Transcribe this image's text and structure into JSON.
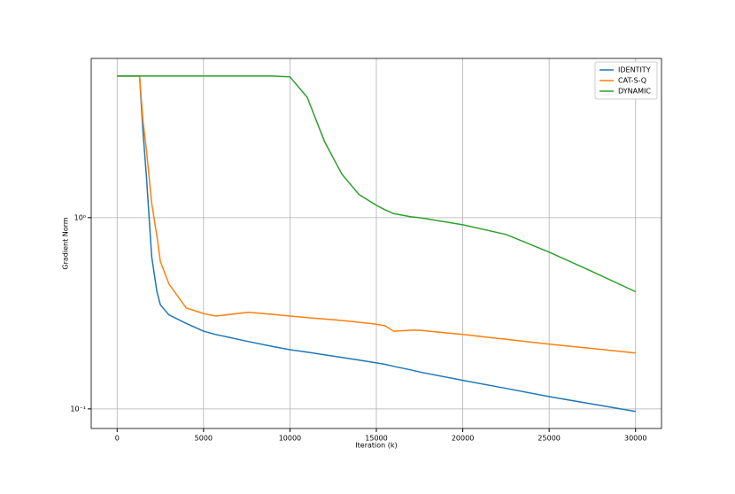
{
  "chart_data": {
    "type": "line",
    "x_label": "Iteration (k)",
    "y_label": "Gradient Norm",
    "x": [
      0,
      1300,
      1500,
      1700,
      2000,
      2300,
      2500,
      3000,
      4000,
      5000,
      5700,
      7600,
      9000,
      10000,
      11000,
      12000,
      13000,
      14000,
      15000,
      15500,
      16000,
      17000,
      17500,
      20000,
      22500,
      25000,
      27500,
      30000
    ],
    "series": [
      {
        "name": "IDENTITY",
        "color": "#1f77b4",
        "values": [
          5.5,
          5.5,
          2.8,
          1.63,
          0.625,
          0.41,
          0.35,
          0.31,
          0.28,
          0.255,
          0.245,
          0.225,
          0.212,
          0.204,
          0.198,
          0.192,
          0.186,
          0.18,
          0.174,
          0.171,
          0.167,
          0.16,
          0.156,
          0.141,
          0.128,
          0.116,
          0.106,
          0.097
        ]
      },
      {
        "name": "CAT-S-Q",
        "color": "#ff7f0e",
        "values": [
          5.5,
          5.5,
          3.2,
          2.25,
          1.19,
          0.8,
          0.59,
          0.45,
          0.337,
          0.315,
          0.306,
          0.32,
          0.312,
          0.306,
          0.3,
          0.295,
          0.29,
          0.284,
          0.277,
          0.272,
          0.255,
          0.258,
          0.258,
          0.245,
          0.231,
          0.218,
          0.207,
          0.196
        ]
      },
      {
        "name": "DYNAMIC",
        "color": "#2ca02c",
        "values": [
          5.5,
          5.5,
          5.5,
          5.5,
          5.5,
          5.5,
          5.5,
          5.5,
          5.5,
          5.5,
          5.5,
          5.5,
          5.5,
          5.45,
          4.26,
          2.5,
          1.69,
          1.32,
          1.16,
          1.1,
          1.05,
          1.01,
          1.0,
          0.918,
          0.817,
          0.66,
          0.522,
          0.41
        ]
      }
    ],
    "xlim": [
      -1500,
      31500
    ],
    "xticks": [
      0,
      5000,
      10000,
      15000,
      20000,
      25000,
      30000
    ],
    "ylim": [
      0.079,
      6.8
    ],
    "yticks": [
      {
        "value": 1,
        "label": "10⁰"
      },
      {
        "value": 0.1,
        "label": "10⁻¹"
      }
    ],
    "log_y": true,
    "grid": true,
    "legend": "upper right"
  }
}
